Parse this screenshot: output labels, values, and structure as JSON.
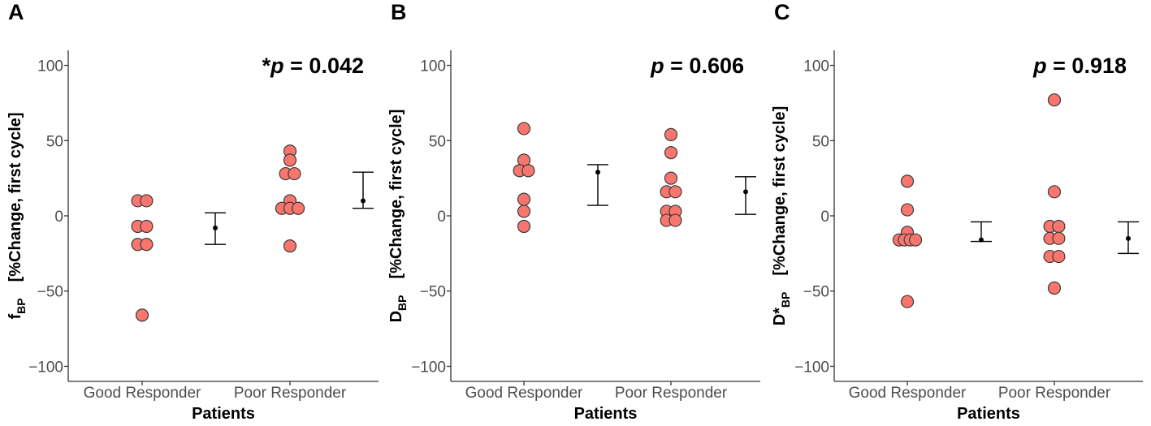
{
  "chart_data": [
    {
      "type": "scatter",
      "panel_label": "A",
      "ylabel_main": "f",
      "ylabel_sub": "BP",
      "ylabel_rest": "[%Change, first cycle]",
      "xlabel": "Patients",
      "categories": [
        "Good Responder",
        "Poor Responder"
      ],
      "ylim": [
        -110,
        110
      ],
      "yticks": [
        100,
        50,
        0,
        -50,
        -100
      ],
      "ytick_labels": [
        "100",
        "50",
        "0",
        "−50",
        "−100"
      ],
      "p_label_prefix": "*",
      "p_label_symbol": "p",
      "p_label_rest": " = 0.042",
      "series": [
        {
          "name": "Good Responder",
          "points": [
            {
              "dx": -0.15,
              "y": 10
            },
            {
              "dx": 0.15,
              "y": 10
            },
            {
              "dx": -0.15,
              "y": -7
            },
            {
              "dx": 0.15,
              "y": -7
            },
            {
              "dx": -0.15,
              "y": -19
            },
            {
              "dx": 0.15,
              "y": -19
            },
            {
              "dx": 0,
              "y": -66
            }
          ],
          "mean": -8,
          "err_low": -19,
          "err_high": 2
        },
        {
          "name": "Poor Responder",
          "points": [
            {
              "dx": 0,
              "y": 43
            },
            {
              "dx": 0,
              "y": 37
            },
            {
              "dx": -0.15,
              "y": 28
            },
            {
              "dx": 0.15,
              "y": 28
            },
            {
              "dx": 0,
              "y": 10
            },
            {
              "dx": -0.28,
              "y": 5
            },
            {
              "dx": 0,
              "y": 5
            },
            {
              "dx": 0.28,
              "y": 5
            },
            {
              "dx": 0,
              "y": -20
            }
          ],
          "mean": 10,
          "err_low": 5,
          "err_high": 29
        }
      ]
    },
    {
      "type": "scatter",
      "panel_label": "B",
      "ylabel_main": "D",
      "ylabel_sub": "BP",
      "ylabel_rest": "[%Change, first cycle]",
      "xlabel": "Patients",
      "categories": [
        "Good Responder",
        "Poor Responder"
      ],
      "ylim": [
        -110,
        110
      ],
      "yticks": [
        100,
        50,
        0,
        -50,
        -100
      ],
      "ytick_labels": [
        "100",
        "50",
        "0",
        "−50",
        "−100"
      ],
      "p_label_prefix": "",
      "p_label_symbol": "p",
      "p_label_rest": " = 0.606",
      "series": [
        {
          "name": "Good Responder",
          "points": [
            {
              "dx": 0,
              "y": 58
            },
            {
              "dx": 0,
              "y": 37
            },
            {
              "dx": -0.15,
              "y": 30
            },
            {
              "dx": 0.15,
              "y": 30
            },
            {
              "dx": 0,
              "y": 11
            },
            {
              "dx": 0,
              "y": 3
            },
            {
              "dx": 0,
              "y": -7
            }
          ],
          "mean": 29,
          "err_low": 7,
          "err_high": 34
        },
        {
          "name": "Poor Responder",
          "points": [
            {
              "dx": 0,
              "y": 54
            },
            {
              "dx": 0,
              "y": 42
            },
            {
              "dx": 0,
              "y": 25
            },
            {
              "dx": -0.15,
              "y": 16
            },
            {
              "dx": 0.15,
              "y": 16
            },
            {
              "dx": -0.15,
              "y": 3
            },
            {
              "dx": 0.15,
              "y": 3
            },
            {
              "dx": -0.15,
              "y": -3
            },
            {
              "dx": 0.15,
              "y": -3
            }
          ],
          "mean": 16,
          "err_low": 1,
          "err_high": 26
        }
      ]
    },
    {
      "type": "scatter",
      "panel_label": "C",
      "ylabel_main": "D*",
      "ylabel_sub": "BP",
      "ylabel_rest": "[%Change, first cycle]",
      "xlabel": "Patients",
      "categories": [
        "Good Responder",
        "Poor Responder"
      ],
      "ylim": [
        -110,
        110
      ],
      "yticks": [
        100,
        50,
        0,
        -50,
        -100
      ],
      "ytick_labels": [
        "100",
        "50",
        "0",
        "−50",
        "−100"
      ],
      "p_label_prefix": "",
      "p_label_symbol": "p",
      "p_label_rest": " = 0.918",
      "series": [
        {
          "name": "Good Responder",
          "points": [
            {
              "dx": 0,
              "y": 23
            },
            {
              "dx": 0,
              "y": 4
            },
            {
              "dx": 0,
              "y": -11
            },
            {
              "dx": -0.28,
              "y": -16
            },
            {
              "dx": -0.1,
              "y": -16
            },
            {
              "dx": 0.1,
              "y": -16
            },
            {
              "dx": 0.28,
              "y": -16
            },
            {
              "dx": 0,
              "y": -57
            }
          ],
          "mean": -16,
          "err_low": -17,
          "err_high": -4
        },
        {
          "name": "Poor Responder",
          "points": [
            {
              "dx": 0,
              "y": 77
            },
            {
              "dx": 0,
              "y": 16
            },
            {
              "dx": -0.15,
              "y": -7
            },
            {
              "dx": 0.15,
              "y": -7
            },
            {
              "dx": -0.15,
              "y": -15
            },
            {
              "dx": 0.15,
              "y": -15
            },
            {
              "dx": -0.15,
              "y": -27
            },
            {
              "dx": 0.15,
              "y": -27
            },
            {
              "dx": 0,
              "y": -48
            }
          ],
          "mean": -15,
          "err_low": -25,
          "err_high": -4
        }
      ]
    }
  ]
}
